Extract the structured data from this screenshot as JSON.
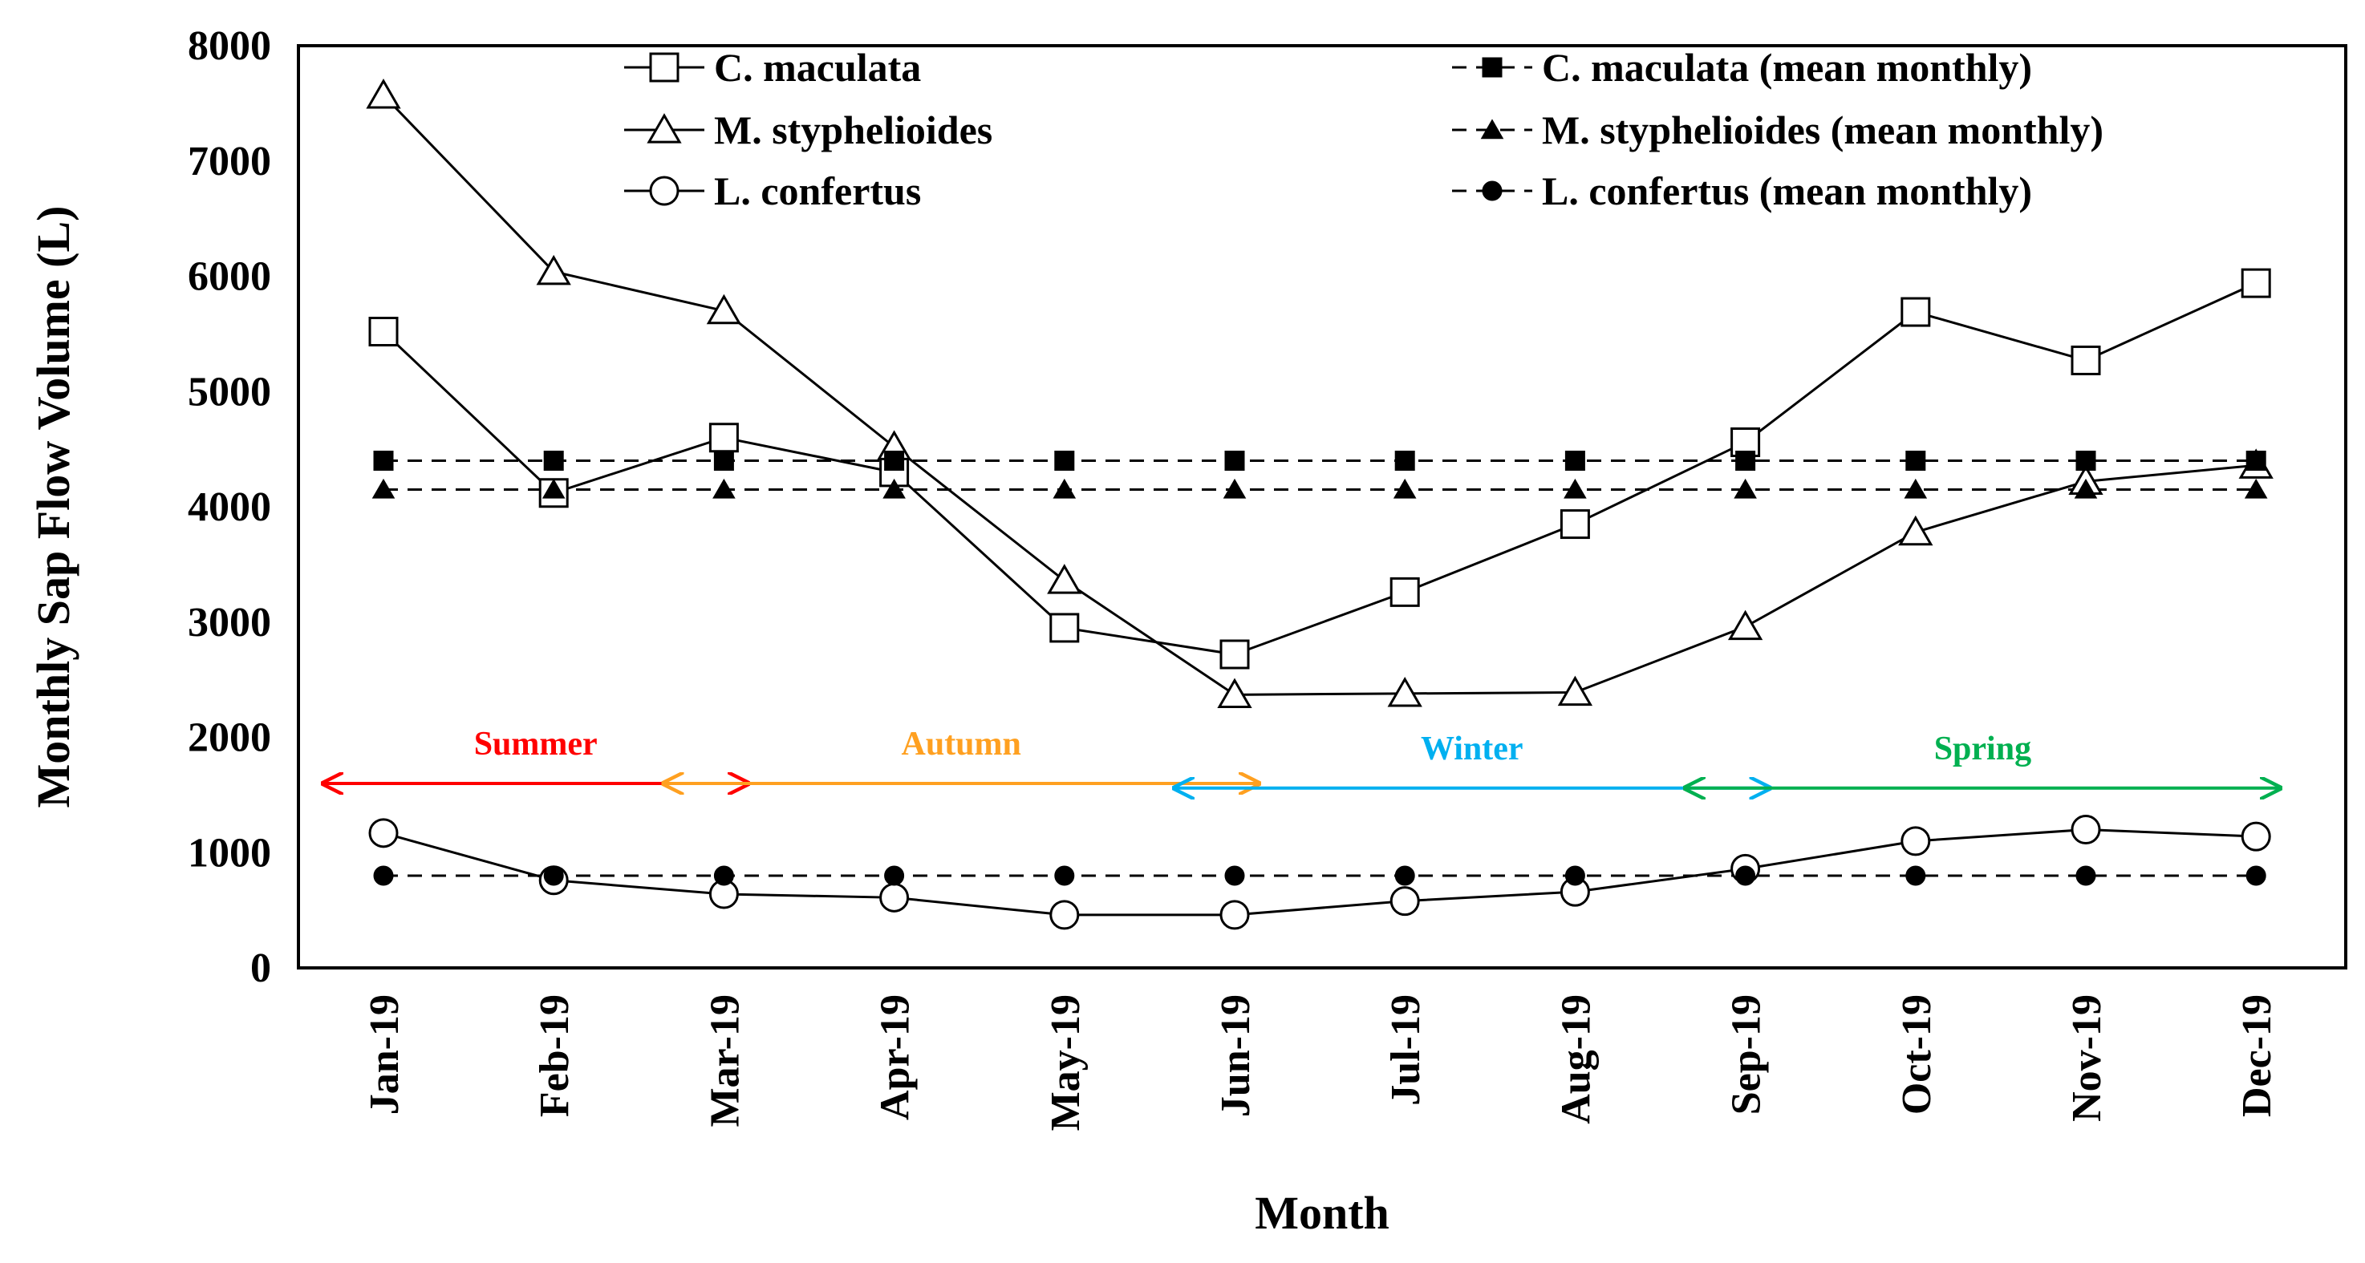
{
  "chart_data": {
    "type": "line",
    "title": "",
    "xlabel": "Month",
    "ylabel": "Monthly Sap Flow Volume (L)",
    "ylim": [
      0,
      8000
    ],
    "yticks": [
      0,
      1000,
      2000,
      3000,
      4000,
      5000,
      6000,
      7000,
      8000
    ],
    "grid": false,
    "categories": [
      "Jan-19",
      "Feb-19",
      "Mar-19",
      "Apr-19",
      "May-19",
      "Jun-19",
      "Jul-19",
      "Aug-19",
      "Sep-19",
      "Oct-19",
      "Nov-19",
      "Dec-19"
    ],
    "series": [
      {
        "name": "C. maculata",
        "marker": "square",
        "filled": false,
        "dashed": false,
        "values": [
          5520,
          4120,
          4600,
          4300,
          2950,
          2720,
          3260,
          3850,
          4560,
          5690,
          5270,
          5940
        ]
      },
      {
        "name": "M. styphelioides",
        "marker": "triangle",
        "filled": false,
        "dashed": false,
        "values": [
          7570,
          6040,
          5700,
          4520,
          3360,
          2370,
          2380,
          2390,
          2960,
          3780,
          4220,
          4360
        ]
      },
      {
        "name": "L. confertus",
        "marker": "circle",
        "filled": false,
        "dashed": false,
        "values": [
          1170,
          760,
          640,
          610,
          460,
          460,
          580,
          660,
          860,
          1100,
          1200,
          1140
        ]
      },
      {
        "name": "C. maculata (mean monthly)",
        "marker": "square",
        "filled": true,
        "dashed": true,
        "values": [
          4400,
          4400,
          4400,
          4400,
          4400,
          4400,
          4400,
          4400,
          4400,
          4400,
          4400,
          4400
        ]
      },
      {
        "name": "M. styphelioides (mean monthly)",
        "marker": "triangle",
        "filled": true,
        "dashed": true,
        "values": [
          4150,
          4150,
          4150,
          4150,
          4150,
          4150,
          4150,
          4150,
          4150,
          4150,
          4150,
          4150
        ]
      },
      {
        "name": "L. confertus (mean monthly)",
        "marker": "circle",
        "filled": true,
        "dashed": true,
        "values": [
          800,
          800,
          800,
          800,
          800,
          800,
          800,
          800,
          800,
          800,
          800,
          800
        ]
      }
    ],
    "seasons": [
      {
        "name": "Summer",
        "color": "#ff0000",
        "start": 0,
        "end": 2,
        "y": 1600
      },
      {
        "name": "Autumn",
        "color": "#ffa020",
        "start": 2,
        "end": 5,
        "y": 1600
      },
      {
        "name": "Winter",
        "color": "#00b0f0",
        "start": 5,
        "end": 8,
        "y": 1560
      },
      {
        "name": "Spring",
        "color": "#00b050",
        "start": 8,
        "end": 11,
        "y": 1560
      }
    ],
    "legend_position": "top"
  }
}
